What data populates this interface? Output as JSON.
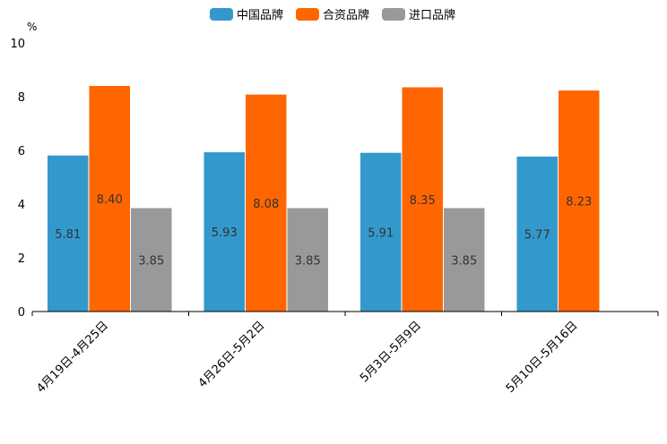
{
  "chart_data": {
    "type": "bar",
    "title": "",
    "ylabel": "%",
    "xlabel": "",
    "ylim": [
      0,
      10
    ],
    "yticks": [
      0,
      2,
      4,
      6,
      8,
      10
    ],
    "grid": false,
    "legend_position": "top-center",
    "categories": [
      "4月19日-4月25日",
      "4月26日-5月2日",
      "5月3日-5月9日",
      "5月10日-5月16日"
    ],
    "series": [
      {
        "name": "中国品牌",
        "color": "#3399CC",
        "values": [
          5.81,
          5.93,
          5.91,
          5.77
        ],
        "labels": [
          "5.81",
          "5.93",
          "5.91",
          "5.77"
        ]
      },
      {
        "name": "合资品牌",
        "color": "#FF6600",
        "values": [
          8.4,
          8.08,
          8.35,
          8.23
        ],
        "labels": [
          "8.40",
          "8.08",
          "8.35",
          "8.23"
        ]
      },
      {
        "name": "进口品牌",
        "color": "#999999",
        "values": [
          3.85,
          3.85,
          3.85,
          null
        ],
        "labels": [
          "3.85",
          "3.85",
          "3.85",
          null
        ]
      }
    ]
  }
}
